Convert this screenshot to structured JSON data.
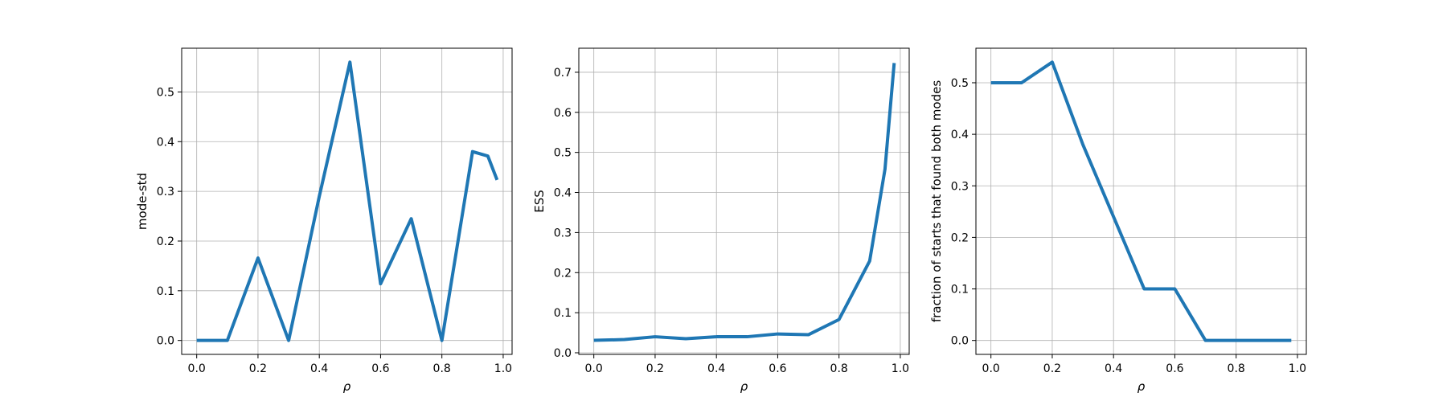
{
  "figure": {
    "line_color": "#1f77b4",
    "grid_color": "#b0b0b0"
  },
  "chart_data": [
    {
      "type": "line",
      "xlabel": "ρ",
      "ylabel": "mode-std",
      "grid": true,
      "xlim": [
        -0.049,
        1.029
      ],
      "ylim": [
        -0.028,
        0.588
      ],
      "xticks": [
        0.0,
        0.2,
        0.4,
        0.6,
        0.8,
        1.0
      ],
      "xtick_labels": [
        "0.0",
        "0.2",
        "0.4",
        "0.6",
        "0.8",
        "1.0"
      ],
      "yticks": [
        0.0,
        0.1,
        0.2,
        0.3,
        0.4,
        0.5
      ],
      "ytick_labels": [
        "0.0",
        "0.1",
        "0.2",
        "0.3",
        "0.4",
        "0.5"
      ],
      "x": [
        0.0,
        0.1,
        0.2,
        0.3,
        0.4,
        0.5,
        0.6,
        0.7,
        0.8,
        0.9,
        0.95,
        0.98
      ],
      "y": [
        0.0,
        0.0,
        0.166,
        0.0,
        0.29,
        0.56,
        0.114,
        0.245,
        0.0,
        0.38,
        0.371,
        0.323
      ]
    },
    {
      "type": "line",
      "xlabel": "ρ",
      "ylabel": "ESS",
      "grid": true,
      "xlim": [
        -0.049,
        1.029
      ],
      "ylim": [
        -0.004,
        0.76
      ],
      "xticks": [
        0.0,
        0.2,
        0.4,
        0.6,
        0.8,
        1.0
      ],
      "xtick_labels": [
        "0.0",
        "0.2",
        "0.4",
        "0.6",
        "0.8",
        "1.0"
      ],
      "yticks": [
        0.0,
        0.1,
        0.2,
        0.3,
        0.4,
        0.5,
        0.6,
        0.7
      ],
      "ytick_labels": [
        "0.0",
        "0.1",
        "0.2",
        "0.3",
        "0.4",
        "0.5",
        "0.6",
        "0.7"
      ],
      "x": [
        0.0,
        0.1,
        0.2,
        0.3,
        0.4,
        0.5,
        0.6,
        0.7,
        0.8,
        0.9,
        0.95,
        0.98
      ],
      "y": [
        0.031,
        0.033,
        0.04,
        0.035,
        0.04,
        0.04,
        0.047,
        0.045,
        0.083,
        0.229,
        0.458,
        0.723
      ]
    },
    {
      "type": "line",
      "xlabel": "ρ",
      "ylabel": "fraction of starts that found both modes",
      "grid": true,
      "xlim": [
        -0.049,
        1.029
      ],
      "ylim": [
        -0.027,
        0.567
      ],
      "xticks": [
        0.0,
        0.2,
        0.4,
        0.6,
        0.8,
        1.0
      ],
      "xtick_labels": [
        "0.0",
        "0.2",
        "0.4",
        "0.6",
        "0.8",
        "1.0"
      ],
      "yticks": [
        0.0,
        0.1,
        0.2,
        0.3,
        0.4,
        0.5
      ],
      "ytick_labels": [
        "0.0",
        "0.1",
        "0.2",
        "0.3",
        "0.4",
        "0.5"
      ],
      "x": [
        0.0,
        0.1,
        0.2,
        0.3,
        0.4,
        0.5,
        0.6,
        0.7,
        0.8,
        0.9,
        0.95,
        0.98
      ],
      "y": [
        0.5,
        0.5,
        0.54,
        0.38,
        0.24,
        0.1,
        0.1,
        0.0,
        0.0,
        0.0,
        0.0,
        0.0
      ]
    }
  ]
}
